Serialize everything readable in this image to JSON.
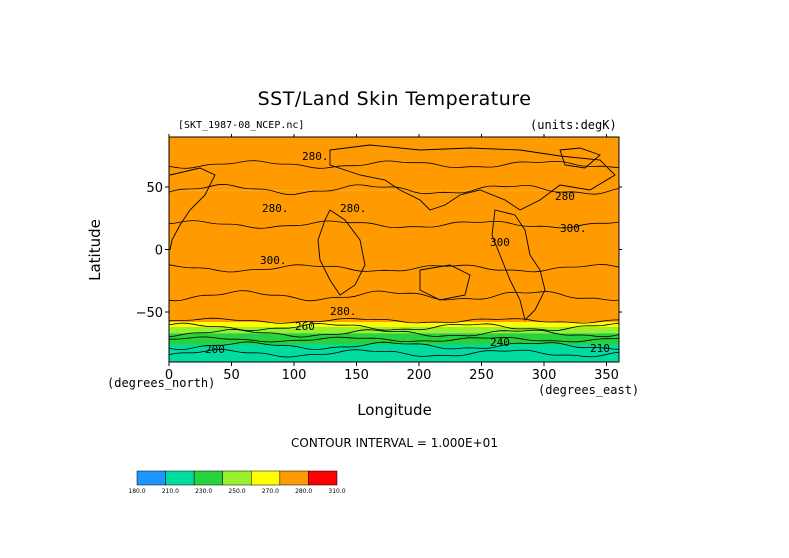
{
  "chart_data": {
    "type": "heatmap",
    "title": "SST/Land Skin Temperature",
    "dataset_label": "[SKT_1987-08_NCEP.nc]",
    "units_label": "(units:degK)",
    "xlabel": "Longitude",
    "ylabel": "Latitude",
    "x_unit_label": "(degrees_east)",
    "y_unit_label": "(degrees_north)",
    "xlim": [
      0,
      360
    ],
    "ylim": [
      -90,
      90
    ],
    "x_ticks": [
      "0",
      "50",
      "100",
      "150",
      "200",
      "250",
      "300",
      "350"
    ],
    "y_ticks": [
      "50",
      "0",
      "−50"
    ],
    "contour_interval_label": "CONTOUR INTERVAL = 1.000E+01",
    "contour_labels": [
      "280.",
      "280.",
      "280.",
      "280",
      "280.",
      "300.",
      "300",
      "300.",
      "260",
      "240",
      "200",
      "210"
    ],
    "colorbar": {
      "levels": [
        "180.0",
        "210.0",
        "230.0",
        "250.0",
        "270.0",
        "280.0",
        "310.0"
      ],
      "colors": [
        "#1e96ff",
        "#00dca0",
        "#28d23c",
        "#9bf02d",
        "#ffff00",
        "#ff9b00",
        "#ff0000"
      ]
    },
    "zonal_bands": [
      {
        "lat_top": 90,
        "lat_bottom": 66,
        "value": 280
      },
      {
        "lat_top": 66,
        "lat_bottom": 47,
        "value": 280
      },
      {
        "lat_top": 47,
        "lat_bottom": -36,
        "value": 300
      },
      {
        "lat_top": -36,
        "lat_bottom": -58,
        "value": 280
      },
      {
        "lat_top": -58,
        "lat_bottom": -62,
        "value": 270
      },
      {
        "lat_top": -62,
        "lat_bottom": -67,
        "value": 250
      },
      {
        "lat_top": -67,
        "lat_bottom": -76,
        "value": 230
      },
      {
        "lat_top": -76,
        "lat_bottom": -90,
        "value": 210
      }
    ]
  }
}
